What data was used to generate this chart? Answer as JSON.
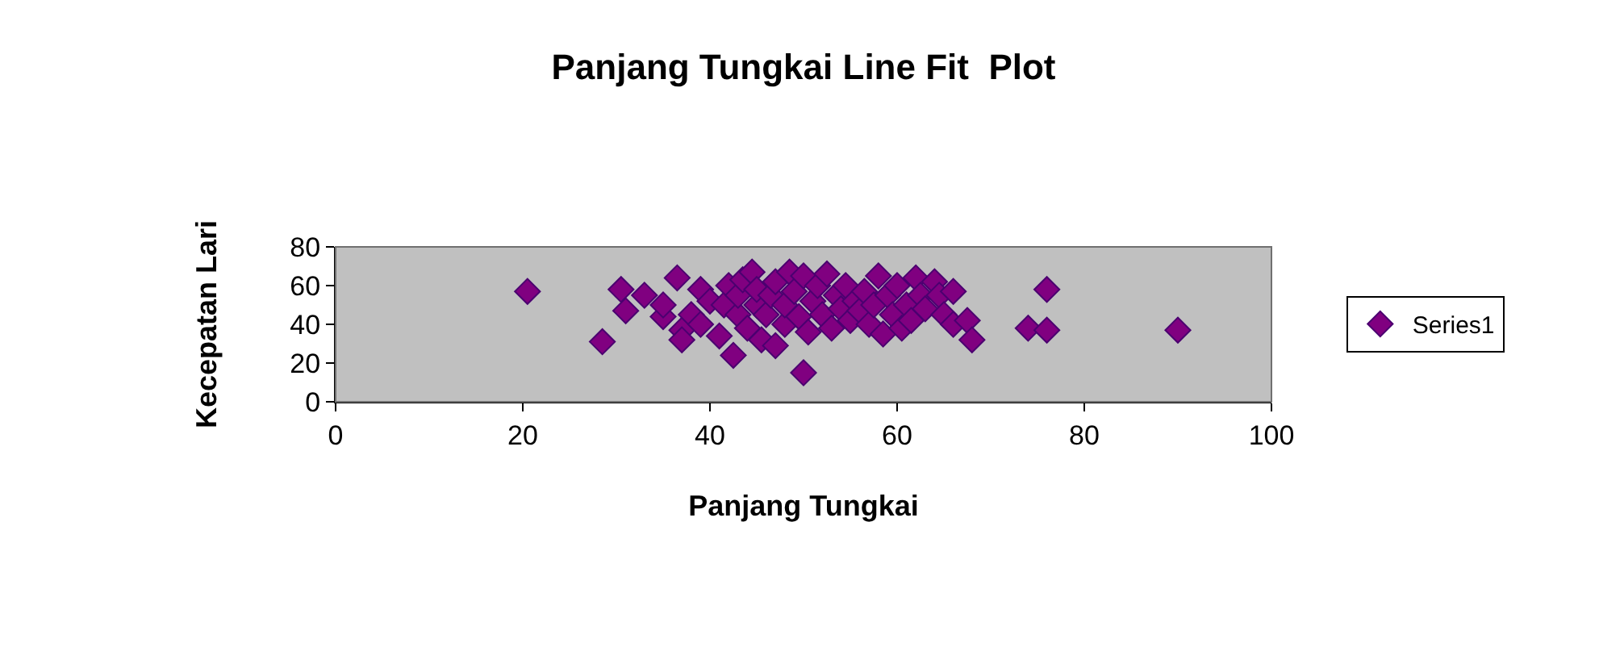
{
  "chart_data": {
    "type": "scatter",
    "title": "Panjang Tungkai Line Fit  Plot",
    "xlabel": "Panjang Tungkai",
    "ylabel": "Kecepatan Lari",
    "x": [
      20.5,
      28.5,
      30.5,
      31,
      33,
      35,
      35,
      36.5,
      37,
      37,
      38,
      39,
      39,
      40,
      41,
      41.5,
      42,
      42.5,
      43,
      43,
      43.5,
      44,
      44.5,
      45,
      45,
      45.5,
      46,
      46.5,
      47,
      47,
      48,
      48,
      48.5,
      49,
      49.5,
      50,
      50,
      50.5,
      51,
      51.5,
      52,
      52.5,
      53,
      53.5,
      54,
      54.5,
      55,
      55.5,
      56,
      56.5,
      57,
      57.5,
      58,
      58.5,
      59,
      59.5,
      60,
      60.5,
      61,
      61.5,
      62,
      62.5,
      63,
      64,
      64.5,
      65,
      66,
      66,
      67.5,
      68,
      74,
      76,
      76,
      90
    ],
    "series": [
      {
        "name": "Series1",
        "color": "#800080",
        "values": [
          57,
          31,
          58,
          47,
          55,
          44,
          50,
          64,
          37,
          32,
          45,
          58,
          40,
          52,
          34,
          50,
          60,
          24,
          45,
          55,
          63,
          38,
          67,
          50,
          58,
          32,
          45,
          55,
          29,
          62,
          40,
          50,
          67,
          57,
          44,
          15,
          65,
          36,
          52,
          60,
          45,
          66,
          38,
          55,
          48,
          60,
          42,
          52,
          47,
          57,
          40,
          50,
          65,
          35,
          55,
          45,
          60,
          38,
          50,
          42,
          64,
          55,
          48,
          62,
          55,
          45,
          57,
          40,
          42,
          32,
          38,
          37,
          58,
          37
        ]
      }
    ],
    "xlim": [
      0,
      100
    ],
    "xticks": [
      0,
      20,
      40,
      60,
      80,
      100
    ],
    "ylim": [
      0,
      80
    ],
    "yticks": [
      0,
      20,
      40,
      60,
      80
    ],
    "marker": "diamond",
    "legend": "right",
    "grid": false
  }
}
